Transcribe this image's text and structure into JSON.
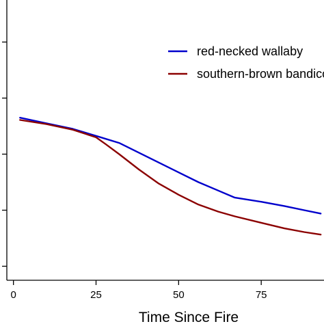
{
  "chart_data": {
    "type": "line",
    "title": "",
    "xlabel": "Time Since Fire",
    "ylabel": "",
    "xlim": [
      -2,
      94
    ],
    "ylim": [
      0,
      1
    ],
    "x_ticks": [
      0,
      25,
      50,
      75
    ],
    "x_tick_labels": [
      "0",
      "25",
      "50",
      "75"
    ],
    "y_ticks": [
      0.05,
      0.25,
      0.45,
      0.65,
      0.85
    ],
    "y_tick_labels": [
      "",
      "",
      "",
      "",
      ""
    ],
    "grid": false,
    "legend_position": "top-right",
    "series": [
      {
        "name": "red-necked wallaby",
        "color": "#0000cc",
        "points": [
          [
            2,
            0.58
          ],
          [
            10,
            0.56
          ],
          [
            18,
            0.54
          ],
          [
            25,
            0.515
          ],
          [
            32,
            0.49
          ],
          [
            38,
            0.455
          ],
          [
            44,
            0.42
          ],
          [
            50,
            0.385
          ],
          [
            56,
            0.35
          ],
          [
            62,
            0.32
          ],
          [
            67,
            0.295
          ],
          [
            75,
            0.28
          ],
          [
            82,
            0.265
          ],
          [
            88,
            0.25
          ],
          [
            93,
            0.238
          ]
        ]
      },
      {
        "name": "southern-brown bandicoot",
        "color": "#8b0000",
        "points": [
          [
            2,
            0.572
          ],
          [
            10,
            0.557
          ],
          [
            18,
            0.537
          ],
          [
            25,
            0.51
          ],
          [
            28,
            0.485
          ],
          [
            32,
            0.45
          ],
          [
            38,
            0.395
          ],
          [
            44,
            0.345
          ],
          [
            50,
            0.305
          ],
          [
            56,
            0.27
          ],
          [
            62,
            0.245
          ],
          [
            67,
            0.228
          ],
          [
            75,
            0.205
          ],
          [
            82,
            0.185
          ],
          [
            88,
            0.172
          ],
          [
            93,
            0.163
          ]
        ]
      }
    ]
  }
}
